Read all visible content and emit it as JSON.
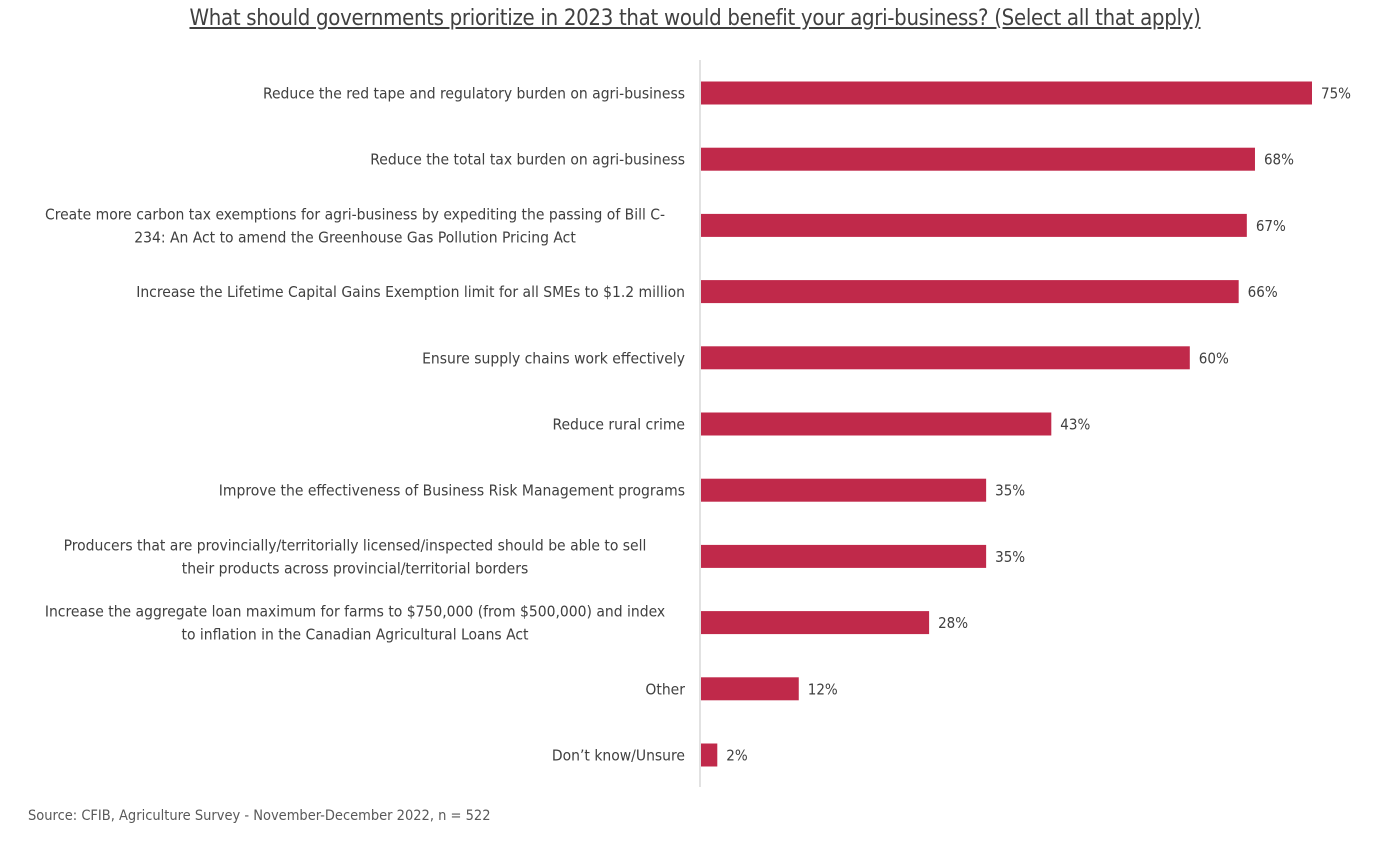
{
  "title": "What should governments prioritize in 2023 that would benefit your agri-business? (Select all that apply)",
  "source": "Source: CFIB, Agriculture Survey - November-December 2022, n = 522",
  "chart_data": {
    "type": "bar",
    "orientation": "horizontal",
    "title": "What should governments prioritize in 2023 that would benefit your agri-business? (Select all that apply)",
    "categories": [
      [
        "Reduce the red tape and regulatory burden on agri-business"
      ],
      [
        "Reduce the total tax burden on agri-business"
      ],
      [
        "Create more carbon tax exemptions for agri-business by expediting the passing of Bill C-",
        "234: An Act to amend the Greenhouse Gas Pollution Pricing Act"
      ],
      [
        "Increase the Lifetime Capital Gains Exemption limit for all SMEs to $1.2 million"
      ],
      [
        "Ensure supply chains work effectively"
      ],
      [
        "Reduce rural crime"
      ],
      [
        "Improve the effectiveness of Business Risk Management programs"
      ],
      [
        "Producers that are provincially/territorially licensed/inspected should be able to sell",
        "their products across provincial/territorial borders"
      ],
      [
        "Increase the aggregate loan maximum for farms to $750,000 (from $500,000) and index",
        "to inflation in the Canadian Agricultural Loans Act"
      ],
      [
        "Other"
      ],
      [
        "Don’t know/Unsure"
      ]
    ],
    "values": [
      75,
      68,
      67,
      66,
      60,
      43,
      35,
      35,
      28,
      12,
      2
    ],
    "value_labels": [
      "75%",
      "68%",
      "67%",
      "66%",
      "60%",
      "43%",
      "35%",
      "35%",
      "28%",
      "12%",
      "2%"
    ],
    "unit": "%",
    "xlim": [
      0,
      75
    ],
    "bar_color": "#c0294a",
    "axis_color": "#d9d9d9",
    "grid": false,
    "legend": "none"
  }
}
